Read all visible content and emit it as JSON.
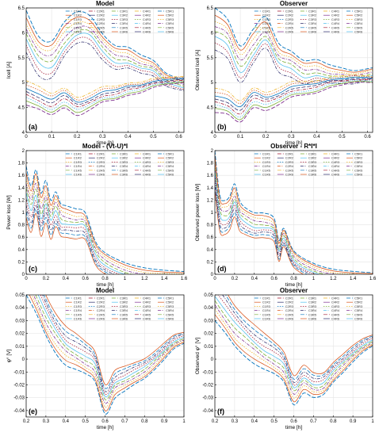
{
  "series_names": [
    "C1R1",
    "C1R2",
    "C1R3",
    "C1R4",
    "C1R5",
    "C1R6",
    "C2R1",
    "C2R2",
    "C2R3",
    "C2R4",
    "C2R5",
    "C2R6",
    "C3R1",
    "C3R2",
    "C3R3",
    "C3R4",
    "C3R5",
    "C3R6",
    "C4R1",
    "C4R2",
    "C4R3",
    "C4R4",
    "C4R5",
    "C4R6",
    "C5R1",
    "C5R2",
    "C5R3",
    "C5R4",
    "C5R5",
    "C5R6"
  ],
  "series_colors": [
    "#0072bd",
    "#d95319",
    "#edb120",
    "#7e2f8e",
    "#77ac30",
    "#4dbeee",
    "#a2142f",
    "#2a2a6a"
  ],
  "chart_data": [
    {
      "id": "a",
      "type": "line",
      "panel_label": "(a)",
      "title": "Model",
      "xlabel": "time [h]",
      "ylabel": "Icell [A]",
      "xlim": [
        0,
        0.62
      ],
      "ylim": [
        4,
        6.5
      ],
      "xticks": [
        0,
        0.1,
        0.2,
        0.3,
        0.4,
        0.5,
        0.6
      ],
      "yticks": [
        4,
        4.5,
        5,
        5.5,
        6,
        6.5
      ],
      "ytick_labels": [
        "4",
        "4.5",
        "5",
        "5.5",
        "6",
        "6.5"
      ],
      "grid": true,
      "legend": "top",
      "legend_x": 0.25,
      "legend_y": 1.0,
      "curve_x": [
        0,
        0.05,
        0.1,
        0.15,
        0.2,
        0.25,
        0.3,
        0.35,
        0.4,
        0.45,
        0.5,
        0.55,
        0.62
      ],
      "curve_families": [
        {
          "y": [
            6.45,
            5.95,
            5.85,
            6.2,
            6.4,
            6.35,
            6.0,
            5.75,
            5.7,
            5.55,
            5.45,
            5.2,
            5.05
          ],
          "spread": -0.12
        },
        {
          "y": [
            4.55,
            4.45,
            4.35,
            4.5,
            4.35,
            4.45,
            4.6,
            4.65,
            4.75,
            4.8,
            4.9,
            4.95,
            5.0
          ],
          "spread": 0.07
        }
      ],
      "curves_per_family": 8
    },
    {
      "id": "b",
      "type": "line",
      "panel_label": "(b)",
      "title": "Observer",
      "xlabel": "time [h]",
      "ylabel": "Observed Icell [A]",
      "xlim": [
        0,
        0.62
      ],
      "ylim": [
        4,
        6.5
      ],
      "xticks": [
        0,
        0.1,
        0.2,
        0.3,
        0.4,
        0.5,
        0.6
      ],
      "yticks": [
        4,
        4.5,
        5,
        5.5,
        6,
        6.5
      ],
      "ytick_labels": [
        "4",
        "4.5",
        "5",
        "5.5",
        "6",
        "6.5"
      ],
      "grid": true,
      "legend": "top",
      "legend_x": 0.25,
      "legend_y": 1.0,
      "curve_x": [
        0,
        0.05,
        0.1,
        0.15,
        0.2,
        0.25,
        0.3,
        0.35,
        0.4,
        0.45,
        0.5,
        0.55,
        0.62
      ],
      "curve_families": [
        {
          "y": [
            6.5,
            6.3,
            5.75,
            6.05,
            6.3,
            5.8,
            5.65,
            5.45,
            5.45,
            5.35,
            5.3,
            5.25,
            5.3
          ],
          "spread": -0.12
        },
        {
          "y": [
            4.4,
            4.35,
            4.2,
            4.5,
            4.45,
            4.55,
            4.7,
            4.75,
            4.8,
            4.9,
            4.95,
            5.0,
            5.0
          ],
          "spread": 0.07
        }
      ],
      "curves_per_family": 8
    },
    {
      "id": "c",
      "type": "line",
      "panel_label": "(c)",
      "title": "Model - (Vt-U)*I",
      "xlabel": "time [h]",
      "ylabel": "Power loss [W]",
      "xlim": [
        0,
        1.6
      ],
      "ylim": [
        0,
        2
      ],
      "xticks": [
        0,
        0.2,
        0.4,
        0.6,
        0.8,
        1,
        1.2,
        1.4,
        1.6
      ],
      "yticks": [
        0,
        0.2,
        0.4,
        0.6,
        0.8,
        1,
        1.2,
        1.4,
        1.6,
        1.8,
        2
      ],
      "ytick_labels": [
        "0",
        "0.2",
        "0.4",
        "0.6",
        "0.8",
        "1",
        "1.2",
        "1.4",
        "1.6",
        "1.8",
        "2"
      ],
      "grid": true,
      "legend": "top",
      "legend_x": 0.25,
      "legend_y": 1.0,
      "curve_x": [
        0,
        0.05,
        0.1,
        0.15,
        0.2,
        0.25,
        0.3,
        0.35,
        0.4,
        0.5,
        0.6,
        0.7,
        0.8,
        1.0,
        1.2,
        1.4,
        1.6
      ],
      "curve_families": [
        {
          "y": [
            1.75,
            1.45,
            1.7,
            1.3,
            1.5,
            1.2,
            1.35,
            1.15,
            1.1,
            1.05,
            1.0,
            0.55,
            0.35,
            0.18,
            0.1,
            0.07,
            0.05
          ],
          "spread": -0.09
        }
      ],
      "curves_per_family": 10
    },
    {
      "id": "d",
      "type": "line",
      "panel_label": "(d)",
      "title": "Observer - R*I*I",
      "xlabel": "time [h]",
      "ylabel": "Observed power loss [W]",
      "xlim": [
        0,
        1.6
      ],
      "ylim": [
        0,
        2
      ],
      "xticks": [
        0,
        0.2,
        0.4,
        0.6,
        0.8,
        1,
        1.2,
        1.4,
        1.6
      ],
      "yticks": [
        0,
        0.2,
        0.4,
        0.6,
        0.8,
        1,
        1.2,
        1.4,
        1.6,
        1.8,
        2
      ],
      "ytick_labels": [
        "0",
        "0.2",
        "0.4",
        "0.6",
        "0.8",
        "1",
        "1.2",
        "1.4",
        "1.6",
        "1.8",
        "2"
      ],
      "grid": true,
      "legend": "top",
      "legend_x": 0.25,
      "legend_y": 1.0,
      "curve_x": [
        0,
        0.05,
        0.1,
        0.15,
        0.2,
        0.25,
        0.3,
        0.4,
        0.5,
        0.6,
        0.65,
        0.7,
        0.8,
        1.0,
        1.2,
        1.4,
        1.6
      ],
      "curve_families": [
        {
          "y": [
            2.0,
            1.3,
            1.2,
            1.25,
            1.45,
            1.2,
            1.1,
            1.0,
            0.98,
            0.9,
            0.55,
            0.75,
            0.38,
            0.17,
            0.08,
            0.05,
            0.03
          ],
          "spread": -0.07
        }
      ],
      "curves_per_family": 10
    },
    {
      "id": "e",
      "type": "line",
      "panel_label": "(e)",
      "title": "Model",
      "xlabel": "time [h]",
      "ylabel": "φ° [V]",
      "xlim": [
        0.2,
        1
      ],
      "ylim": [
        -0.045,
        0.05
      ],
      "xticks": [
        0.2,
        0.3,
        0.4,
        0.5,
        0.6,
        0.7,
        0.8,
        0.9,
        1
      ],
      "yticks": [
        -0.04,
        -0.03,
        -0.02,
        -0.01,
        0,
        0.01,
        0.02,
        0.03,
        0.04,
        0.05
      ],
      "ytick_labels": [
        "-0.04",
        "-0.03",
        "-0.02",
        "-0.01",
        "0",
        "0.01",
        "0.02",
        "0.03",
        "0.04",
        "0.05"
      ],
      "grid": true,
      "legend": "top",
      "legend_x": 0.25,
      "legend_y": 1.0,
      "curve_x": [
        0.2,
        0.25,
        0.3,
        0.35,
        0.4,
        0.45,
        0.5,
        0.55,
        0.6,
        0.65,
        0.7,
        0.75,
        0.8,
        0.85,
        0.9,
        0.95,
        1.0
      ],
      "curve_families": [
        {
          "y": [
            0.05,
            0.035,
            0.018,
            0.005,
            -0.004,
            -0.008,
            -0.012,
            -0.018,
            -0.042,
            -0.03,
            -0.025,
            -0.02,
            -0.015,
            -0.008,
            0.0,
            0.008,
            0.012
          ],
          "spread": 0.004
        }
      ],
      "curves_per_family": 10
    },
    {
      "id": "f",
      "type": "line",
      "panel_label": "(f)",
      "title": "Observer",
      "xlabel": "time [h]",
      "ylabel": "Observed φ° [V]",
      "xlim": [
        0.2,
        1
      ],
      "ylim": [
        -0.045,
        0.05
      ],
      "xticks": [
        0.2,
        0.3,
        0.4,
        0.5,
        0.6,
        0.7,
        0.8,
        0.9,
        1
      ],
      "yticks": [
        -0.04,
        -0.03,
        -0.02,
        -0.01,
        0,
        0.01,
        0.02,
        0.03,
        0.04,
        0.05
      ],
      "ytick_labels": [
        "-0.04",
        "-0.03",
        "-0.02",
        "-0.01",
        "0",
        "0.01",
        "0.02",
        "0.03",
        "0.04",
        "0.05"
      ],
      "grid": true,
      "legend": "top",
      "legend_x": 0.25,
      "legend_y": 1.0,
      "curve_x": [
        0.2,
        0.25,
        0.3,
        0.35,
        0.4,
        0.45,
        0.5,
        0.55,
        0.6,
        0.65,
        0.7,
        0.75,
        0.8,
        0.85,
        0.9,
        0.95,
        1.0
      ],
      "curve_families": [
        {
          "y": [
            0.03,
            0.02,
            0.01,
            0.003,
            -0.003,
            -0.008,
            -0.012,
            -0.018,
            -0.035,
            -0.026,
            -0.03,
            -0.028,
            -0.018,
            -0.01,
            -0.002,
            0.005,
            0.01
          ],
          "spread": 0.004
        }
      ],
      "curves_per_family": 10
    }
  ]
}
